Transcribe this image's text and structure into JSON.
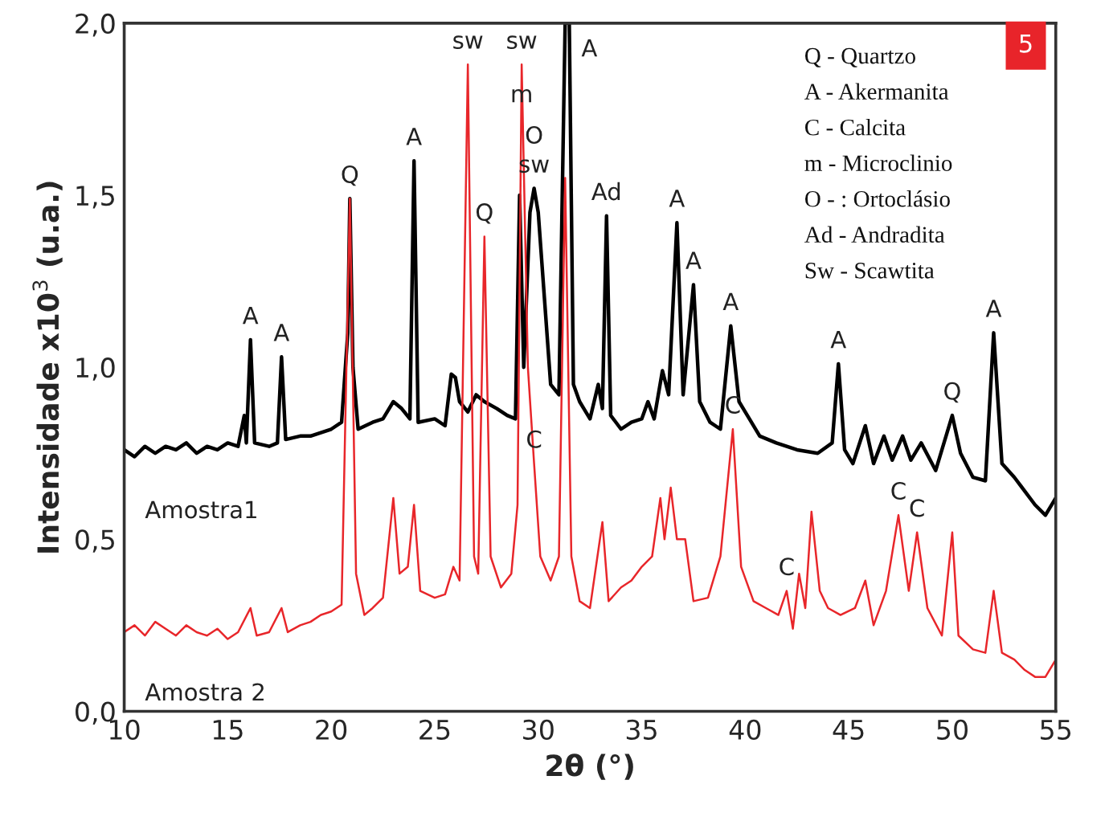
{
  "chart_data": {
    "type": "line",
    "xlabel": "2θ (°)",
    "ylabel": "Intensidade x10$^{3}$ (u.a.)",
    "xlim": [
      10,
      55
    ],
    "xticks": [
      10,
      15,
      20,
      25,
      30,
      35,
      40,
      45,
      50,
      55
    ],
    "ylim": [
      0,
      2.0
    ],
    "yticks": [
      {
        "value": 0,
        "label": "0,0"
      },
      {
        "value": 0.5,
        "label": "0,5"
      },
      {
        "value": 1.0,
        "label": "1,0"
      },
      {
        "value": 1.5,
        "label": "1,5"
      },
      {
        "value": 2.0,
        "label": "2,0"
      }
    ],
    "grid": false,
    "legend": false,
    "marker": "none",
    "line_style": "solid",
    "series": [
      {
        "name": "Amostra1",
        "color": "#000000",
        "x": [
          10,
          10.5,
          11,
          11.5,
          12,
          12.5,
          13,
          13.5,
          14,
          14.5,
          15,
          15.5,
          15.8,
          15.9,
          16.1,
          16.3,
          17,
          17.4,
          17.6,
          17.8,
          18.5,
          19,
          19.5,
          20,
          20.5,
          20.8,
          20.9,
          21.05,
          21.3,
          22,
          22.5,
          23,
          23.4,
          23.8,
          24.0,
          24.2,
          25,
          25.5,
          25.8,
          26.0,
          26.2,
          26.6,
          27.0,
          27.4,
          28,
          28.5,
          28.9,
          29.1,
          29.3,
          29.6,
          29.8,
          30.0,
          30.3,
          30.6,
          31.0,
          31.3,
          31.5,
          31.7,
          32,
          32.5,
          32.9,
          33.1,
          33.3,
          33.5,
          34,
          34.5,
          35,
          35.3,
          35.6,
          36.0,
          36.3,
          36.7,
          37.0,
          37.5,
          37.8,
          38.3,
          38.8,
          39.3,
          39.7,
          40.2,
          40.7,
          41.5,
          42.5,
          43.5,
          44.2,
          44.5,
          44.8,
          45.2,
          45.8,
          46.2,
          46.7,
          47.1,
          47.6,
          48.0,
          48.5,
          49.2,
          50.0,
          50.4,
          51.0,
          51.6,
          52.0,
          52.4,
          53,
          53.5,
          54,
          54.5,
          55
        ],
        "values": [
          0.76,
          0.74,
          0.77,
          0.75,
          0.77,
          0.76,
          0.78,
          0.75,
          0.77,
          0.76,
          0.78,
          0.77,
          0.86,
          0.78,
          1.08,
          0.78,
          0.77,
          0.78,
          1.03,
          0.79,
          0.8,
          0.8,
          0.81,
          0.82,
          0.84,
          1.1,
          1.49,
          1.0,
          0.82,
          0.84,
          0.85,
          0.9,
          0.88,
          0.85,
          1.6,
          0.84,
          0.85,
          0.83,
          0.98,
          0.97,
          0.9,
          0.87,
          0.92,
          0.9,
          0.88,
          0.86,
          0.85,
          1.5,
          1.0,
          1.45,
          1.52,
          1.45,
          1.2,
          0.95,
          0.92,
          2.0,
          2.0,
          0.95,
          0.9,
          0.85,
          0.95,
          0.88,
          1.44,
          0.86,
          0.82,
          0.84,
          0.85,
          0.9,
          0.85,
          0.99,
          0.92,
          1.42,
          0.92,
          1.24,
          0.9,
          0.84,
          0.82,
          1.12,
          0.9,
          0.85,
          0.8,
          0.78,
          0.76,
          0.75,
          0.78,
          1.01,
          0.76,
          0.72,
          0.83,
          0.72,
          0.8,
          0.73,
          0.8,
          0.73,
          0.78,
          0.7,
          0.86,
          0.75,
          0.68,
          0.67,
          1.1,
          0.72,
          0.68,
          0.64,
          0.6,
          0.57,
          0.62
        ]
      },
      {
        "name": "Amostra 2",
        "color": "#e8262a",
        "x": [
          10,
          10.5,
          11,
          11.5,
          12,
          12.5,
          13,
          13.5,
          14,
          14.5,
          15,
          15.5,
          16.1,
          16.4,
          17,
          17.6,
          17.9,
          18.5,
          19,
          19.5,
          20,
          20.5,
          20.9,
          21.2,
          21.6,
          22,
          22.5,
          23.0,
          23.3,
          23.7,
          24.0,
          24.3,
          25,
          25.5,
          25.9,
          26.2,
          26.6,
          26.9,
          27.1,
          27.4,
          27.7,
          28.2,
          28.7,
          29.0,
          29.2,
          29.5,
          29.8,
          30.1,
          30.6,
          31.0,
          31.3,
          31.6,
          32,
          32.5,
          33.1,
          33.4,
          34,
          34.5,
          35,
          35.5,
          35.9,
          36.1,
          36.4,
          36.7,
          37.1,
          37.5,
          38.2,
          38.8,
          39.4,
          39.8,
          40.4,
          41,
          41.6,
          42.0,
          42.3,
          42.6,
          42.9,
          43.2,
          43.6,
          44,
          44.6,
          45.3,
          45.8,
          46.2,
          46.8,
          47.4,
          47.9,
          48.3,
          48.8,
          49.5,
          50.0,
          50.3,
          51,
          51.6,
          52.0,
          52.4,
          53,
          53.5,
          54,
          54.5,
          55
        ],
        "values": [
          0.23,
          0.25,
          0.22,
          0.26,
          0.24,
          0.22,
          0.25,
          0.23,
          0.22,
          0.24,
          0.21,
          0.23,
          0.3,
          0.22,
          0.23,
          0.3,
          0.23,
          0.25,
          0.26,
          0.28,
          0.29,
          0.31,
          1.49,
          0.4,
          0.28,
          0.3,
          0.33,
          0.62,
          0.4,
          0.42,
          0.6,
          0.35,
          0.33,
          0.34,
          0.42,
          0.38,
          1.88,
          0.45,
          0.4,
          1.38,
          0.45,
          0.36,
          0.4,
          0.6,
          1.88,
          1.0,
          0.72,
          0.45,
          0.38,
          0.45,
          1.55,
          0.45,
          0.32,
          0.3,
          0.55,
          0.32,
          0.36,
          0.38,
          0.42,
          0.45,
          0.62,
          0.5,
          0.65,
          0.5,
          0.5,
          0.32,
          0.33,
          0.45,
          0.82,
          0.42,
          0.32,
          0.3,
          0.28,
          0.35,
          0.24,
          0.4,
          0.3,
          0.58,
          0.35,
          0.3,
          0.28,
          0.3,
          0.38,
          0.25,
          0.35,
          0.57,
          0.35,
          0.52,
          0.3,
          0.22,
          0.52,
          0.22,
          0.18,
          0.17,
          0.35,
          0.17,
          0.15,
          0.12,
          0.1,
          0.1,
          0.15
        ]
      }
    ],
    "annotations": [
      {
        "text": "A",
        "x": 16.1,
        "y": 1.08
      },
      {
        "text": "A",
        "x": 17.6,
        "y": 1.03
      },
      {
        "text": "Q",
        "x": 20.9,
        "y": 1.49
      },
      {
        "text": "A",
        "x": 24.0,
        "y": 1.6
      },
      {
        "text": "sw",
        "x": 26.6,
        "y": 1.88
      },
      {
        "text": "Q",
        "x": 27.4,
        "y": 1.38
      },
      {
        "text": "sw",
        "x": 29.2,
        "y": 1.88
      },
      {
        "text": "sw",
        "x": 29.8,
        "y": 1.52
      },
      {
        "text": "O",
        "x": 29.8,
        "y": 1.52
      },
      {
        "text": "m",
        "x": 29.2,
        "y": 1.88
      },
      {
        "text": "A",
        "x": 31.5,
        "y": 2.0
      },
      {
        "text": "Ad",
        "x": 33.3,
        "y": 1.44
      },
      {
        "text": "A",
        "x": 36.7,
        "y": 1.42
      },
      {
        "text": "A",
        "x": 37.5,
        "y": 1.24
      },
      {
        "text": "A",
        "x": 39.3,
        "y": 1.12
      },
      {
        "text": "A",
        "x": 44.5,
        "y": 1.01
      },
      {
        "text": "Q",
        "x": 50.0,
        "y": 0.86
      },
      {
        "text": "A",
        "x": 52.0,
        "y": 1.1
      },
      {
        "text": "C",
        "x": 29.8,
        "y": 0.72
      },
      {
        "text": "C",
        "x": 39.4,
        "y": 0.82
      },
      {
        "text": "C",
        "x": 42.0,
        "y": 0.35
      },
      {
        "text": "C",
        "x": 47.4,
        "y": 0.57
      },
      {
        "text": "C",
        "x": 48.3,
        "y": 0.52
      },
      "Q - Quartzo",
      "A - Akermanita",
      "C - Calcita",
      "m - Microclinio",
      "O - : Ortoclásio",
      "Ad - Andradita",
      "Sw - Scawtita",
      "5"
    ]
  }
}
